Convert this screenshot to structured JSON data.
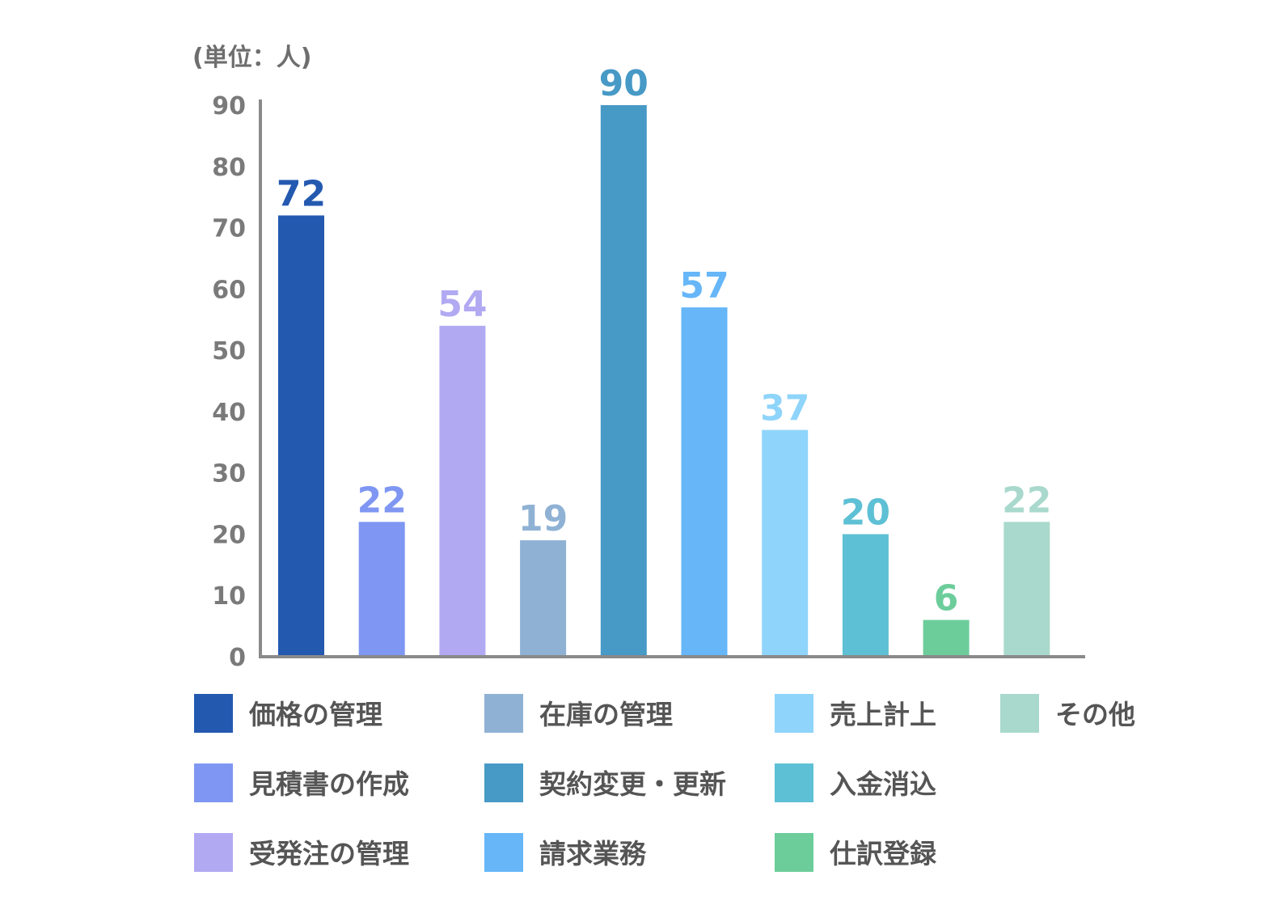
{
  "chart_data": {
    "type": "bar",
    "unit_label": "(単位：人)",
    "y_ticks": [
      "0",
      "10",
      "20",
      "30",
      "40",
      "50",
      "60",
      "70",
      "80",
      "90"
    ],
    "ylim": [
      0,
      90
    ],
    "grid": false,
    "legend_position": "bottom",
    "categories": [
      "価格の管理",
      "見積書の作成",
      "受発注の管理",
      "在庫の管理",
      "契約変更・更新",
      "請求業務",
      "売上計上",
      "入金消込",
      "仕訳登録",
      "その他"
    ],
    "values": [
      72,
      22,
      54,
      19,
      90,
      57,
      37,
      20,
      6,
      22
    ],
    "value_labels": [
      "72",
      "22",
      "54",
      "19",
      "90",
      "57",
      "37",
      "20",
      "6",
      "22"
    ],
    "colors": [
      "#2459b0",
      "#7f97f2",
      "#b1aaf2",
      "#8fb2d4",
      "#4799c6",
      "#66b6f8",
      "#8fd4fa",
      "#5ec0d4",
      "#6ccd9b",
      "#a9d9cc"
    ],
    "legend_label_colors": [
      "#2459b0",
      "#7f97f2",
      "#b1aaf2",
      "#8fb2d4",
      "#4799c6",
      "#66b6f8",
      "#8fd4fa",
      "#5ec0d4",
      "#6ccd9b",
      "#a9d9cc"
    ],
    "axis_color": "#8a8a8a"
  }
}
